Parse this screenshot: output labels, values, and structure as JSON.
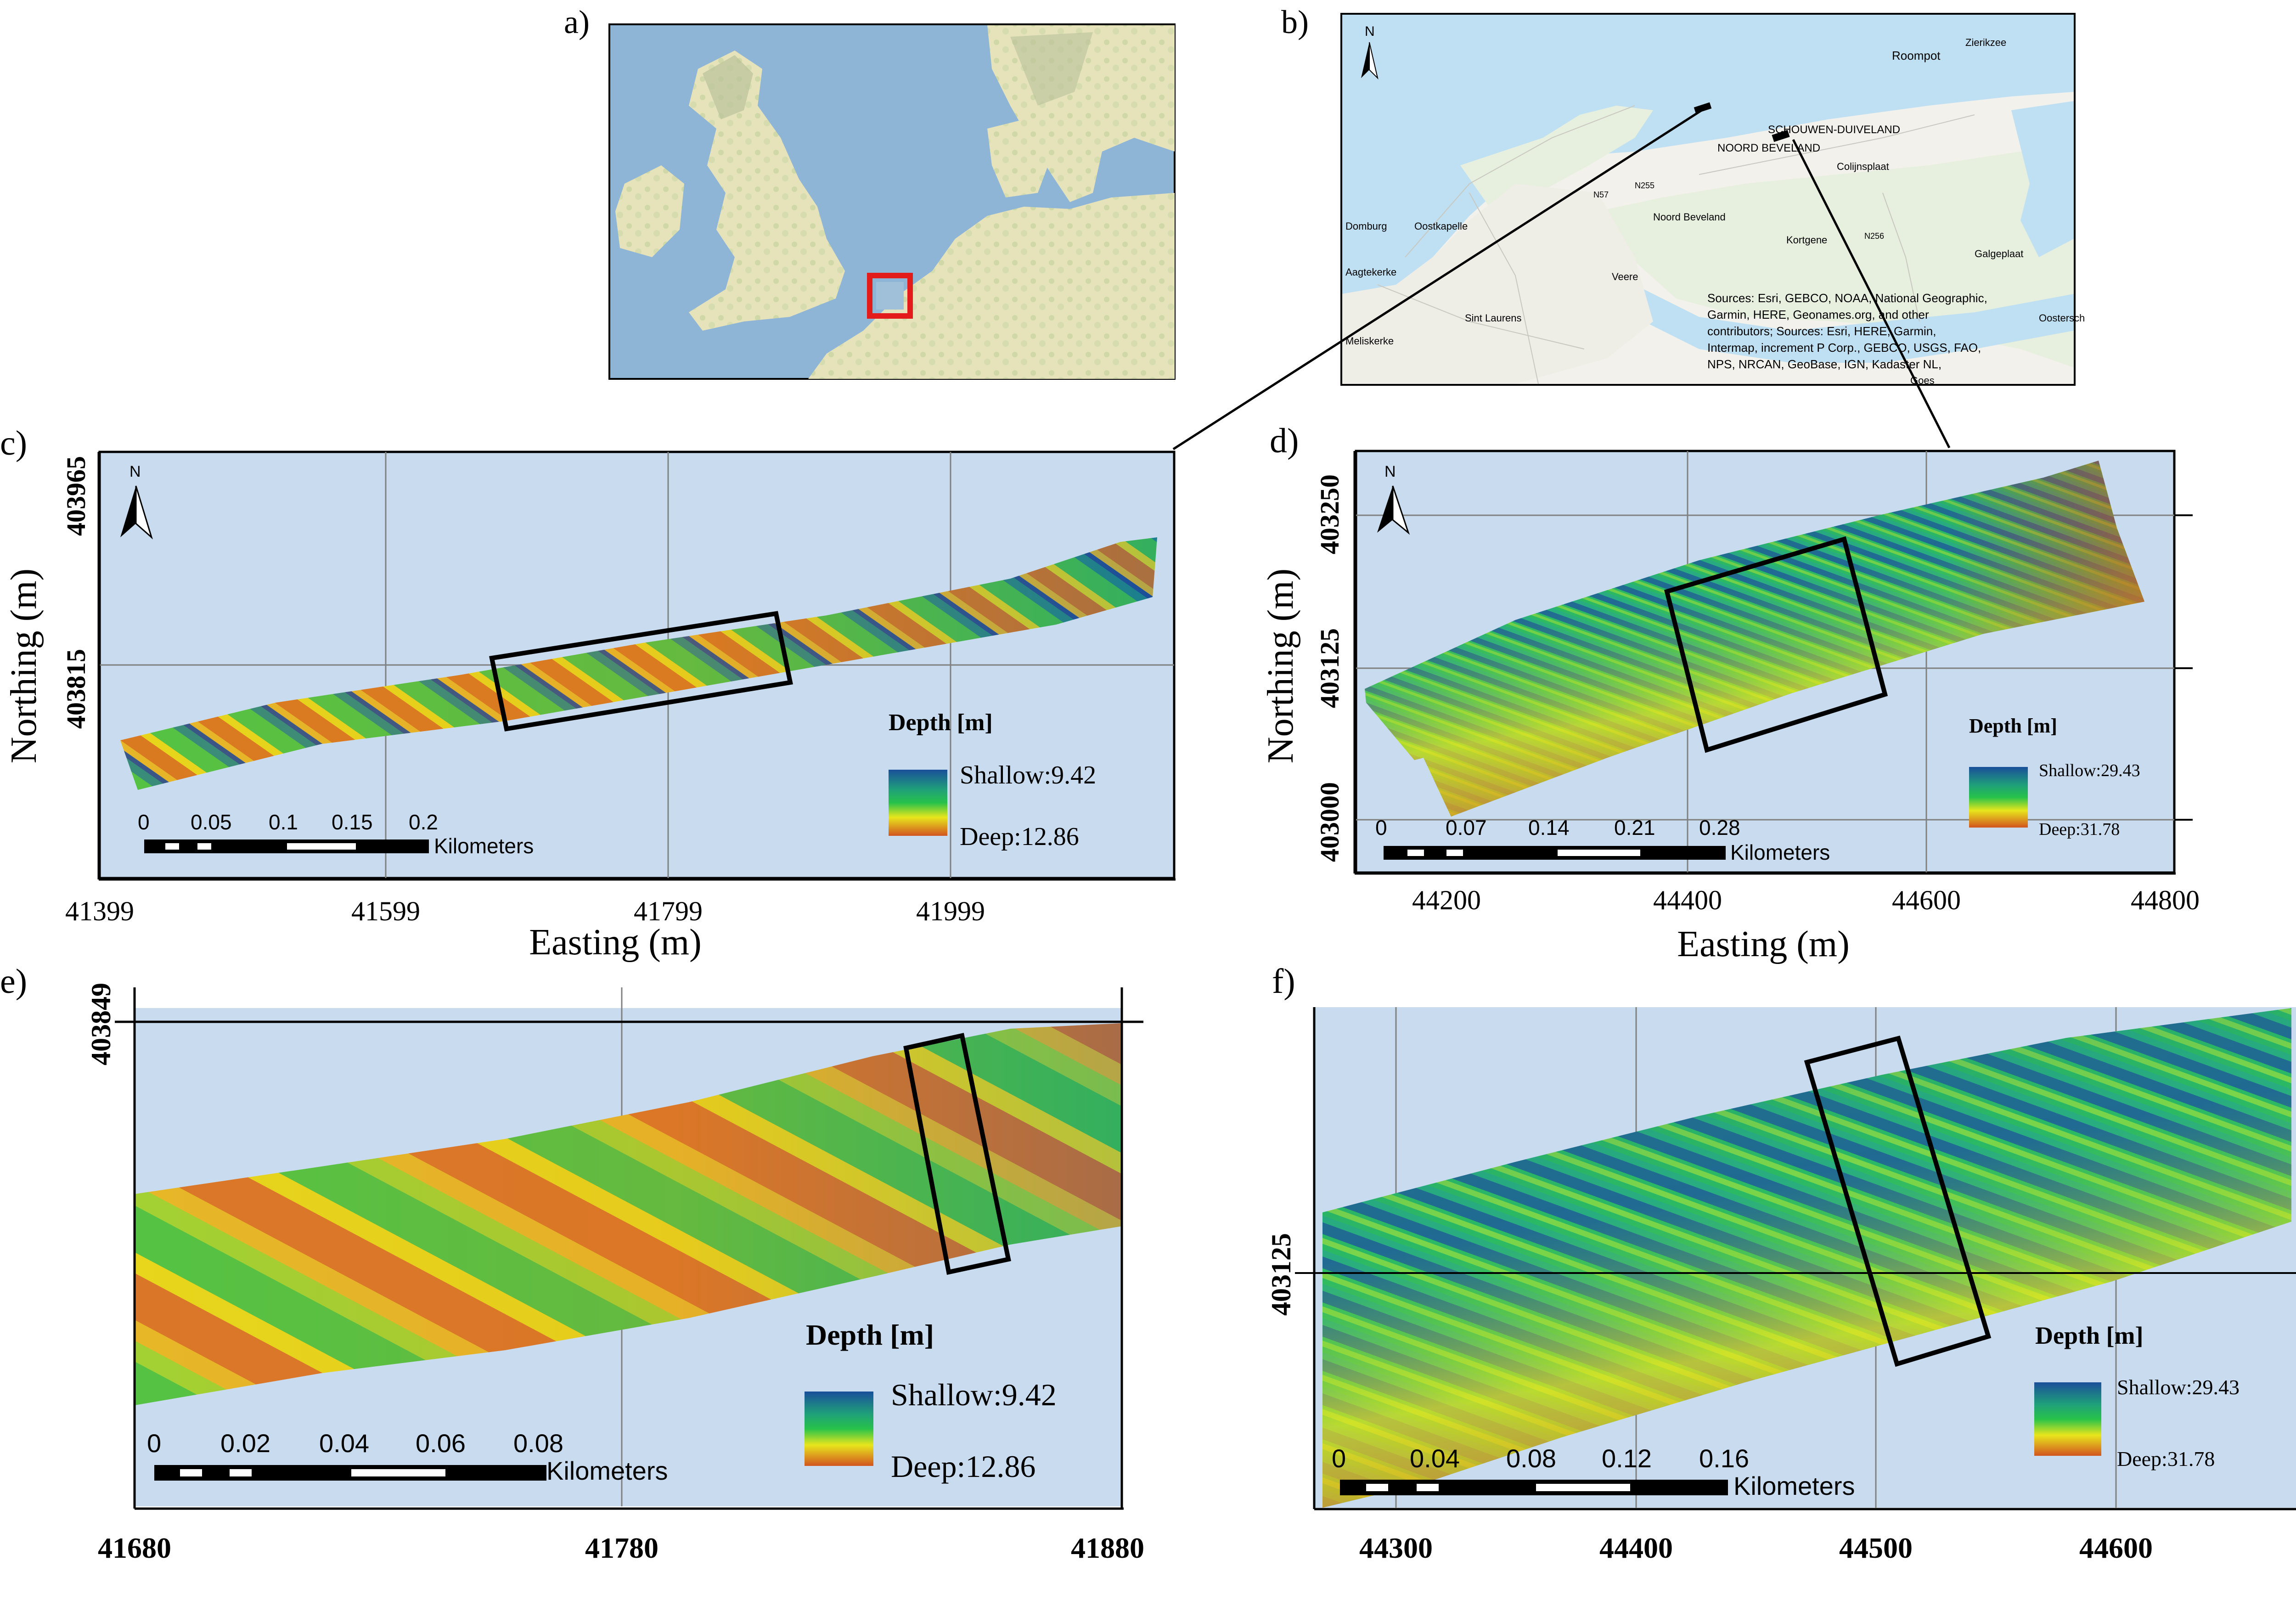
{
  "panels": {
    "a": {
      "label": "a)"
    },
    "b": {
      "label": "b)",
      "north": "N",
      "places": [
        "Roompot",
        "Zierikzee",
        "SCHOUWEN-DUIVELAND",
        "NOORD BEVELAND",
        "Colijnsplaat",
        "Domburg",
        "Oostkapelle",
        "Noord Beveland",
        "Kortgene",
        "Galgeplaat",
        "Aagtekerke",
        "Veere",
        "Sint Laurens",
        "Meliskerke",
        "Oostersch",
        "Goes"
      ],
      "roads": [
        "N57",
        "N255",
        "N256"
      ],
      "attribution": [
        "Sources: Esri, GEBCO, NOAA, National Geographic,",
        "Garmin, HERE, Geonames.org, and other",
        "contributors; Sources: Esri, HERE, Garmin,",
        "Intermap, increment P Corp., GEBCO, USGS, FAO,",
        "NPS, NRCAN, GeoBase, IGN, Kadaster NL,"
      ]
    },
    "c": {
      "label": "c)",
      "north": "N",
      "y_ticks": [
        "403965",
        "403815"
      ],
      "x_ticks": [
        "41399",
        "41599",
        "41799",
        "41999"
      ],
      "x_axis_title": "Easting (m)",
      "y_axis_title": "Northing (m)",
      "legend": {
        "title": "Depth [m]",
        "shallow": "Shallow:9.42",
        "deep": "Deep:12.86"
      },
      "scale": {
        "ticks": [
          "0",
          "0.05",
          "0.1",
          "0.15",
          "0.2"
        ],
        "unit": "Kilometers"
      }
    },
    "d": {
      "label": "d)",
      "north": "N",
      "y_ticks": [
        "403250",
        "403125",
        "403000"
      ],
      "x_ticks": [
        "44200",
        "44400",
        "44600",
        "44800"
      ],
      "x_axis_title": "Easting (m)",
      "y_axis_title": "Northing (m)",
      "legend": {
        "title": "Depth [m]",
        "shallow": "Shallow:29.43",
        "deep": "Deep:31.78"
      },
      "scale": {
        "ticks": [
          "0",
          "0.07",
          "0.14",
          "0.21",
          "0.28"
        ],
        "unit": "Kilometers"
      }
    },
    "e": {
      "label": "e)",
      "y_ticks": [
        "403849"
      ],
      "x_ticks": [
        "41680",
        "41780",
        "41880"
      ],
      "legend": {
        "title": "Depth [m]",
        "shallow": "Shallow:9.42",
        "deep": "Deep:12.86"
      },
      "scale": {
        "ticks": [
          "0",
          "0.02",
          "0.04",
          "0.06",
          "0.08"
        ],
        "unit": "Kilometers"
      }
    },
    "f": {
      "label": "f)",
      "y_ticks": [
        "403125"
      ],
      "x_ticks": [
        "44300",
        "44400",
        "44500",
        "44600"
      ],
      "legend": {
        "title": "Depth [m]",
        "shallow": "Shallow:29.43",
        "deep": "Deep:31.78"
      },
      "scale": {
        "ticks": [
          "0",
          "0.04",
          "0.08",
          "0.12",
          "0.16"
        ],
        "unit": "Kilometers"
      }
    }
  },
  "colors": {
    "background": "#c9dbee",
    "sea": "#a8c8e4",
    "shallow": "#1a4f9a",
    "mid": "#27c24a",
    "deep": "#d2541f",
    "marker": "#e31b1b"
  }
}
